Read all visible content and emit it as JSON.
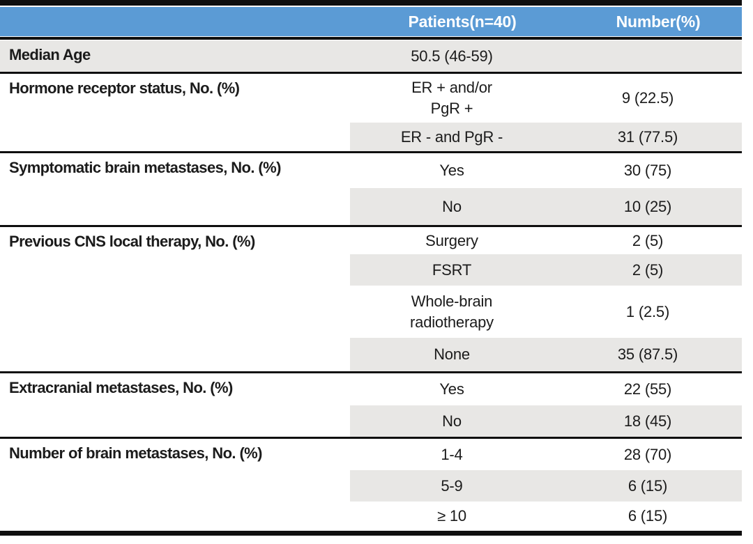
{
  "title": "Patient characteristics table",
  "header": {
    "category": "",
    "patients": "Patients(n=40)",
    "number": "Number(%)"
  },
  "colors": {
    "header_bg": "#5b9bd5",
    "header_text": "#ffffff",
    "row_shade": "#e8e7e5",
    "border_dark": "#0f0f0f",
    "text": "#1b1b1b"
  },
  "sections": [
    {
      "label": "Median Age",
      "rows": [
        {
          "patients": "50.5 (46-59)",
          "number": "",
          "shaded": true,
          "shade_full_row": true,
          "h": 45
        }
      ]
    },
    {
      "label": "Hormone receptor status, No. (%)",
      "rows": [
        {
          "patients": "ER + and/or\nPgR +",
          "number": "9 (22.5)",
          "shaded": false,
          "h": 70
        },
        {
          "patients": "ER - and PgR -",
          "number": "31 (77.5)",
          "shaded": true,
          "h": 41
        }
      ]
    },
    {
      "label": "Symptomatic brain metastases, No. (%)",
      "rows": [
        {
          "patients": "Yes",
          "number": "30 (75)",
          "shaded": false,
          "h": 50
        },
        {
          "patients": "No",
          "number": "10 (25)",
          "shaded": true,
          "h": 53
        }
      ]
    },
    {
      "label": "Previous CNS local therapy, No. (%)",
      "rows": [
        {
          "patients": "Surgery",
          "number": "2 (5)",
          "shaded": false,
          "h": 39
        },
        {
          "patients": "FSRT",
          "number": "2 (5)",
          "shaded": true,
          "h": 45
        },
        {
          "patients": "Whole-brain\nradiotherapy",
          "number": "1 (2.5)",
          "shaded": false,
          "h": 75
        },
        {
          "patients": "None",
          "number": "35 (87.5)",
          "shaded": true,
          "h": 48
        }
      ]
    },
    {
      "label": "Extracranial metastases, No. (%)",
      "rows": [
        {
          "patients": "Yes",
          "number": "22 (55)",
          "shaded": false,
          "h": 46
        },
        {
          "patients": "No",
          "number": "18 (45)",
          "shaded": true,
          "h": 45
        }
      ]
    },
    {
      "label": "Number of brain metastases, No. (%)",
      "rows": [
        {
          "patients": "1-4",
          "number": "28 (70)",
          "shaded": false,
          "h": 45
        },
        {
          "patients": "5-9",
          "number": "6 (15)",
          "shaded": true,
          "h": 45
        },
        {
          "patients": "≥ 10",
          "number": "6 (15)",
          "shaded": false,
          "h": 42
        }
      ]
    }
  ]
}
